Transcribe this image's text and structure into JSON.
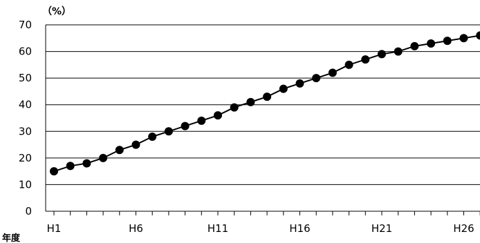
{
  "chart_data": {
    "type": "line",
    "unit_label": "（%）",
    "xlabel": "年度",
    "ylabel": "",
    "ylim": [
      0,
      70
    ],
    "y_ticks": [
      0,
      10,
      20,
      30,
      40,
      50,
      60,
      70
    ],
    "grid": true,
    "x_tick_labels": [
      "H1",
      "H6",
      "H11",
      "H16",
      "H21",
      "H26"
    ],
    "series": [
      {
        "color": "#000000",
        "x": [
          "H1",
          "H2",
          "H3",
          "H4",
          "H5",
          "H6",
          "H7",
          "H8",
          "H9",
          "H10",
          "H11",
          "H12",
          "H13",
          "H14",
          "H15",
          "H16",
          "H17",
          "H18",
          "H19",
          "H20",
          "H21",
          "H22",
          "H23",
          "H24",
          "H25",
          "H26",
          "H27"
        ],
        "values": [
          15,
          17,
          18,
          20,
          23,
          25,
          28,
          30,
          32,
          34,
          36,
          39,
          41,
          43,
          46,
          48,
          50,
          52,
          55,
          57,
          59,
          60,
          62,
          63,
          64,
          65,
          66
        ]
      }
    ]
  }
}
